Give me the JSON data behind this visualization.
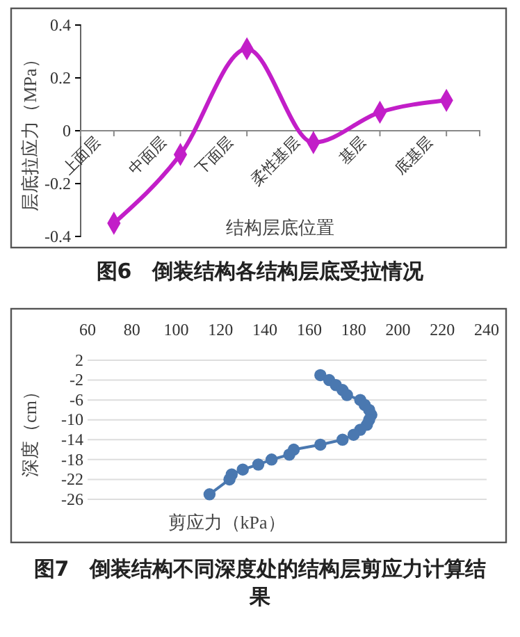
{
  "chart_data": [
    {
      "type": "line",
      "title": "图6　倒装结构各结构层底受拉情况",
      "xlabel": "结构层底位置",
      "ylabel": "层底拉应力（MPa）",
      "categories": [
        "上面层",
        "中面层",
        "下面层",
        "柔性基层",
        "基层",
        "底基层"
      ],
      "series": [
        {
          "color": "#c21ec8",
          "values": [
            -0.35,
            -0.09,
            0.31,
            -0.045,
            0.07,
            0.115
          ]
        }
      ],
      "ylim": [
        -0.4,
        0.4
      ],
      "yticks": [
        {
          "value": -0.4,
          "label": "-0.4"
        },
        {
          "value": -0.2,
          "label": "-0.2"
        },
        0,
        {
          "value": 0.2,
          "label": "0.2"
        },
        {
          "value": 0.4,
          "label": "0.4"
        }
      ],
      "marker": "diamond",
      "grid": false
    },
    {
      "type": "line",
      "title": "图7　倒装结构不同深度处的结构层剪应力计算结果",
      "xlabel": "剪应力（kPa）",
      "ylabel": "深度（cm）",
      "series": [
        {
          "color": "#4a78b0",
          "x": [
            165,
            169,
            172,
            175,
            177,
            183,
            185,
            187,
            188,
            187,
            186,
            183,
            180,
            175,
            165,
            153,
            151,
            143,
            137,
            130,
            125,
            124,
            115
          ],
          "values": [
            -1,
            -2,
            -3,
            -4,
            -5,
            -6,
            -7,
            -8,
            -9,
            -10,
            -11,
            -12,
            -13,
            -14,
            -15,
            -16,
            -17,
            -18,
            -19,
            -20,
            -21,
            -22,
            -25
          ]
        }
      ],
      "xlim": [
        60,
        240
      ],
      "xticks": [
        60,
        80,
        100,
        120,
        140,
        160,
        180,
        200,
        220,
        240
      ],
      "ylim": [
        -26,
        2
      ],
      "yticks": [
        -26,
        -22,
        -18,
        -14,
        -10,
        -6,
        -2,
        2
      ],
      "marker": "circle",
      "grid": "y"
    }
  ]
}
